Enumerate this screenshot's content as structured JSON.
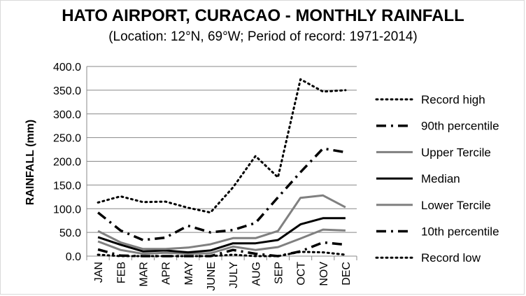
{
  "chart_data": {
    "type": "line",
    "title": "HATO AIRPORT, CURACAO - MONTHLY RAINFALL",
    "subtitle": "(Location: 12°N, 69°W; Period of record: 1971-2014)",
    "xlabel": "",
    "ylabel": "RAINFALL (mm)",
    "ylim": [
      0,
      400
    ],
    "ytick_step": 50,
    "ytick_format_decimals": 1,
    "grid": "horizontal",
    "legend_position": "right",
    "categories": [
      "JAN",
      "FEB",
      "MAR",
      "APR",
      "MAY",
      "JUNE",
      "JULY",
      "AUG",
      "SEP",
      "OCT",
      "NOV",
      "DEC"
    ],
    "series": [
      {
        "name": "Record high",
        "color": "#000000",
        "style": "dotted",
        "values": [
          113,
          126,
          114,
          115,
          102,
          92,
          145,
          211,
          166,
          373,
          347,
          350
        ]
      },
      {
        "name": "90th percentile",
        "color": "#000000",
        "style": "dashdot",
        "values": [
          92,
          54,
          34,
          39,
          64,
          50,
          55,
          70,
          124,
          177,
          227,
          219
        ]
      },
      {
        "name": "Upper Tercile",
        "color": "#808080",
        "style": "solid",
        "values": [
          53,
          29,
          15,
          15,
          18,
          25,
          38,
          38,
          53,
          123,
          128,
          103
        ]
      },
      {
        "name": "Median",
        "color": "#000000",
        "style": "solid",
        "values": [
          40,
          24,
          10,
          12,
          8,
          12,
          27,
          27,
          34,
          67,
          80,
          80
        ]
      },
      {
        "name": "Lower Tercile",
        "color": "#808080",
        "style": "solid",
        "values": [
          31,
          13,
          5,
          7,
          5,
          6,
          20,
          13,
          19,
          37,
          56,
          54
        ]
      },
      {
        "name": "10th percentile",
        "color": "#000000",
        "style": "dashdot",
        "values": [
          14,
          1,
          0,
          0,
          0,
          0,
          13,
          5,
          0,
          10,
          29,
          24
        ]
      },
      {
        "name": "Record low",
        "color": "#000000",
        "style": "dotted",
        "values": [
          3,
          0,
          0,
          0,
          0,
          0,
          3,
          0,
          0,
          9,
          8,
          3
        ]
      }
    ]
  }
}
